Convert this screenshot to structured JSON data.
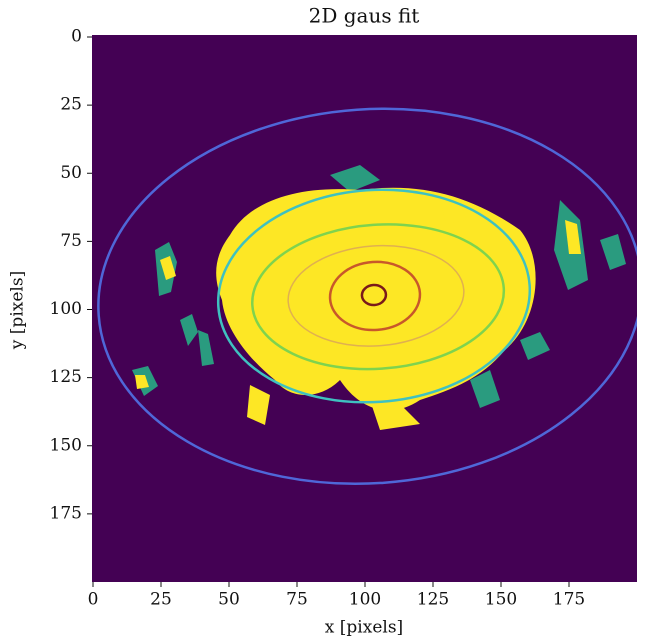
{
  "chart_data": {
    "type": "image",
    "title": "2D gaus fit",
    "xlabel": "x [pixels]",
    "ylabel": "y [pixels]",
    "xlim": [
      0,
      200
    ],
    "ylim": [
      200,
      0
    ],
    "xticks": [
      0,
      25,
      50,
      75,
      100,
      125,
      150,
      175
    ],
    "yticks": [
      0,
      25,
      50,
      75,
      100,
      125,
      150,
      175
    ]
  }
}
